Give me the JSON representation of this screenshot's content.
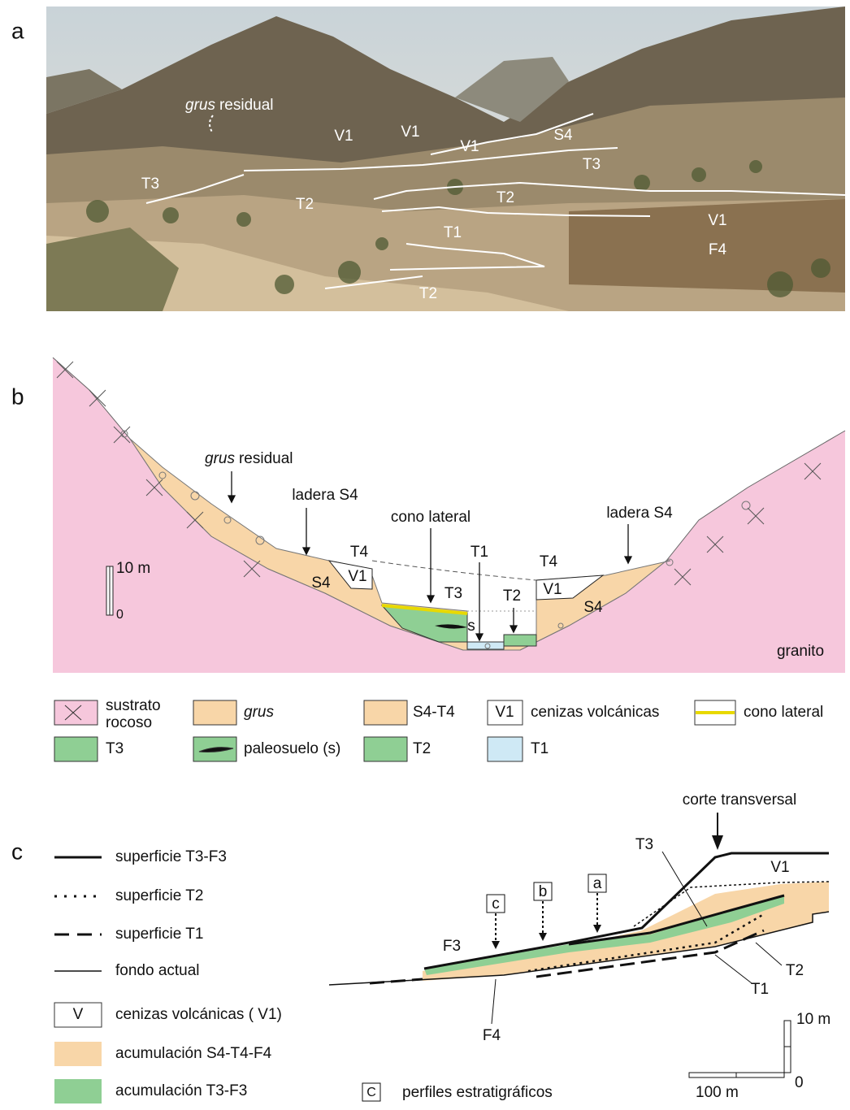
{
  "panel_a": {
    "letter": "a",
    "grus_residual": {
      "italic": "grus",
      "text": "residual"
    },
    "photo_labels": [
      "V1",
      "V1",
      "V1",
      "S4",
      "T3",
      "T3",
      "T2",
      "T2",
      "T1",
      "V1",
      "F4",
      "T2"
    ]
  },
  "panel_b": {
    "letter": "b",
    "grus_residual": {
      "italic": "grus",
      "text": "residual"
    },
    "labels": [
      "ladera S4",
      "cono lateral",
      "T1",
      "T4",
      "T4",
      "ladera S4",
      "S4",
      "V1",
      "T3",
      "T2",
      "s",
      "V1",
      "S4",
      "granito"
    ],
    "scale": [
      "10 m",
      "0"
    ],
    "legend": [
      {
        "lines": [
          "sustrato",
          "rocoso"
        ]
      },
      {
        "italic": "grus"
      },
      {
        "label": "S4-T4"
      },
      {
        "symbol": "V1",
        "label": "cenizas volcánicas"
      },
      {
        "label": "cono lateral"
      },
      {
        "label": "T3"
      },
      {
        "label": "paleosuelo (s)"
      },
      {
        "label": "T2"
      },
      {
        "label": "T1"
      }
    ]
  },
  "panel_c": {
    "letter": "c",
    "legend": [
      {
        "label": "superficie T3-F3"
      },
      {
        "label": "superficie T2"
      },
      {
        "label": "superficie T1"
      },
      {
        "label": "fondo actual"
      },
      {
        "symbol": "V",
        "label": "cenizas volcánicas ( V1)"
      },
      {
        "label": "acumulación S4-T4-F4"
      },
      {
        "label": "acumulación T3-F3"
      }
    ],
    "labels": [
      "corte transversal",
      "T3",
      "V1",
      "F3",
      "T2",
      "T1",
      "F4"
    ],
    "profiles": [
      "c",
      "b",
      "a"
    ],
    "profiles_legend": {
      "symbol": "C",
      "label": "perfiles estratigráficos"
    },
    "scale": {
      "vertical": [
        "10 m",
        "0"
      ],
      "horizontal": "100 m"
    }
  }
}
